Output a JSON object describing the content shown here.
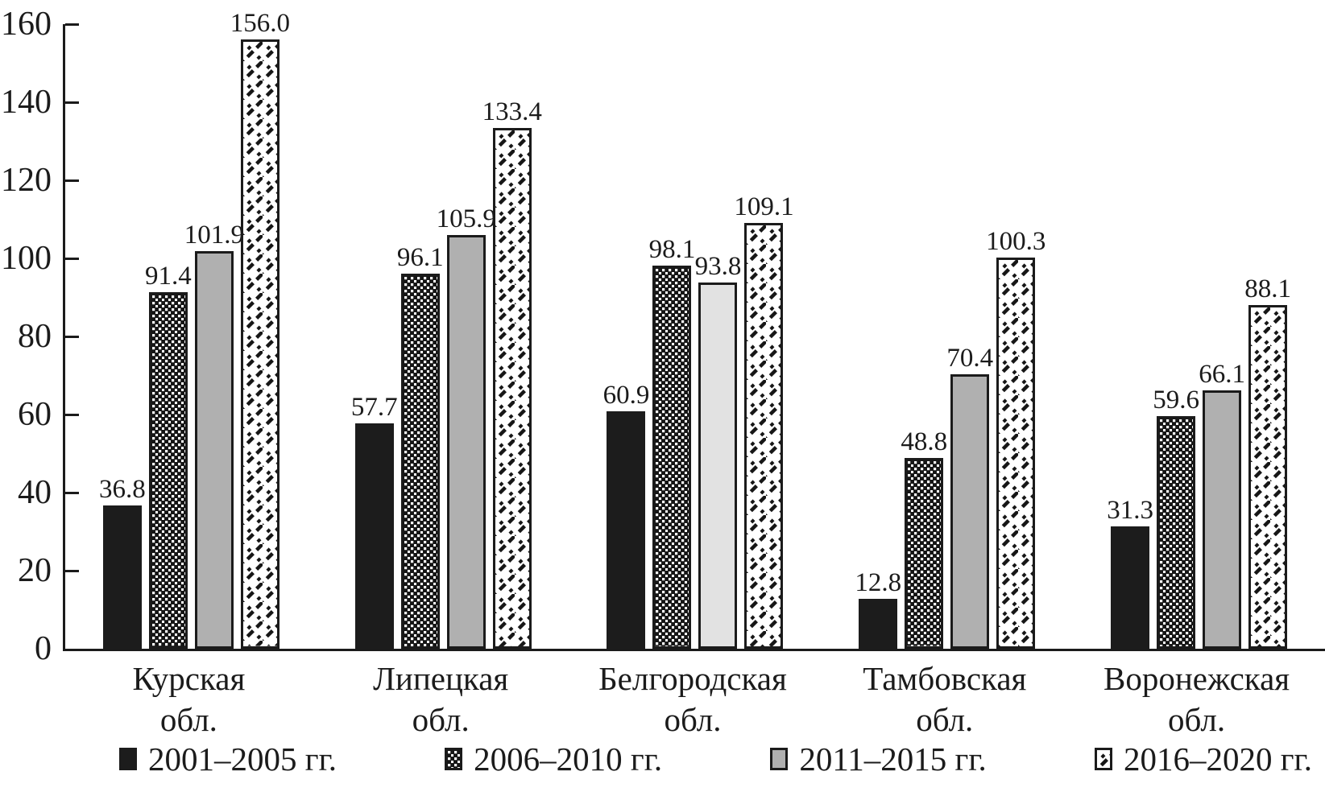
{
  "figure": {
    "background": "#ffffff",
    "axis_color": "#1b1b1b",
    "bar_colors": {
      "solid_black": "#1c1c1c",
      "gray": "#b0b0b0",
      "gray_light": "#e2e2e2",
      "hatch_background": "#ffffff",
      "pattern_ink": "#161616"
    }
  },
  "chart_data": {
    "type": "bar",
    "title": "",
    "xlabel": "",
    "ylabel": "",
    "categories": [
      "Курская обл.",
      "Липецкая обл.",
      "Белгородская обл.",
      "Тамбовская обл.",
      "Воронежская обл."
    ],
    "category_lines": [
      [
        "Курская",
        "обл."
      ],
      [
        "Липецкая",
        "обл."
      ],
      [
        "Белгородская",
        "обл."
      ],
      [
        "Тамбовская",
        "обл."
      ],
      [
        "Воронежская",
        "обл."
      ]
    ],
    "series": [
      {
        "name": "2001–2005 гг.",
        "style": "solid-black",
        "values": [
          36.8,
          57.7,
          60.9,
          12.8,
          31.3
        ]
      },
      {
        "name": "2006–2010 гг.",
        "style": "dot-pattern",
        "values": [
          91.4,
          96.1,
          98.1,
          48.8,
          59.6
        ]
      },
      {
        "name": "2011–2015 гг.",
        "style": "solid-gray",
        "values": [
          101.9,
          105.9,
          93.8,
          70.4,
          66.1
        ],
        "color_overrides": {
          "2": "#e2e2e2"
        }
      },
      {
        "name": "2016–2020 гг.",
        "style": "diagonal-weave",
        "values": [
          156.0,
          133.4,
          109.1,
          100.3,
          88.1
        ]
      }
    ],
    "ylim": [
      0,
      160
    ],
    "yticks": [
      0,
      20,
      40,
      60,
      80,
      100,
      120,
      140,
      160
    ],
    "value_label_decimals": 1,
    "grid": false,
    "legend_position": "bottom"
  }
}
